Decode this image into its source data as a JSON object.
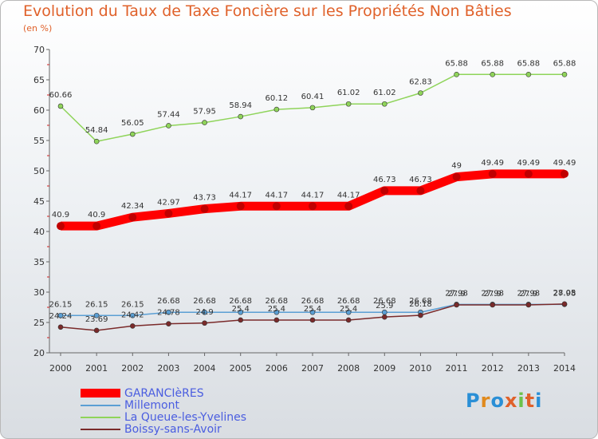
{
  "title": "Evolution du Taux de Taxe Foncière sur les Propriétés Non Bâties",
  "unit": "(en %)",
  "logo": {
    "text": "Proxiti",
    "colors": [
      "#2a8fd6",
      "#e08a1e",
      "#2a8fd6",
      "#e0612a",
      "#6cc24a",
      "#e0612a",
      "#2a8fd6"
    ]
  },
  "chart_data": {
    "type": "line",
    "x": [
      "2000",
      "2001",
      "2002",
      "2003",
      "2004",
      "2005",
      "2006",
      "2007",
      "2008",
      "2009",
      "2010",
      "2011",
      "2012",
      "2013",
      "2014"
    ],
    "ylim": [
      20,
      70
    ],
    "yticks": [
      20,
      25,
      30,
      35,
      40,
      45,
      50,
      55,
      60,
      65,
      70
    ],
    "grid": false,
    "legend_position": "bottom-left",
    "series": [
      {
        "name": "GARANCIèRES",
        "color": "#ff0000",
        "width": "thick",
        "values": [
          40.9,
          40.9,
          42.34,
          42.97,
          43.73,
          44.17,
          44.17,
          44.17,
          44.17,
          46.73,
          46.73,
          49,
          49.49,
          49.49,
          49.49
        ],
        "labels": [
          "40.9",
          "40.9",
          "42.34",
          "42.97",
          "43.73",
          "44.17",
          "44.17",
          "44.17",
          "44.17",
          "46.73",
          "46.73",
          "49",
          "49.49",
          "49.49",
          "49.49"
        ]
      },
      {
        "name": "Millemont",
        "color": "#5b9fd4",
        "width": "thin",
        "values": [
          26.15,
          26.15,
          26.15,
          26.68,
          26.68,
          26.68,
          26.68,
          26.68,
          26.68,
          26.68,
          26.68,
          27.98,
          27.98,
          27.98,
          27.98
        ],
        "labels": [
          "26.15",
          "26.15",
          "26.15",
          "26.68",
          "26.68",
          "26.68",
          "26.68",
          "26.68",
          "26.68",
          "26.68",
          "26.68",
          "27.98",
          "27.98",
          "27.98",
          "27.98"
        ]
      },
      {
        "name": "La Queue-les-Yvelines",
        "color": "#8fd45a",
        "width": "thin",
        "values": [
          60.66,
          54.84,
          56.05,
          57.44,
          57.95,
          58.94,
          60.12,
          60.41,
          61.02,
          61.02,
          62.83,
          65.88,
          65.88,
          65.88,
          65.88
        ],
        "labels": [
          "60.66",
          "54.84",
          "56.05",
          "57.44",
          "57.95",
          "58.94",
          "60.12",
          "60.41",
          "61.02",
          "61.02",
          "62.83",
          "65.88",
          "65.88",
          "65.88",
          "65.88"
        ]
      },
      {
        "name": "Boissy-sans-Avoir",
        "color": "#7a2a2a",
        "width": "thin",
        "values": [
          24.24,
          23.69,
          24.42,
          24.78,
          24.9,
          25.4,
          25.4,
          25.4,
          25.4,
          25.9,
          26.18,
          27.9,
          27.9,
          27.9,
          28.05
        ],
        "labels": [
          "24.24",
          "23.69",
          "24.42",
          "24.78",
          "24.9",
          "25.4",
          "25.4",
          "25.4",
          "25.4",
          "25.9",
          "26.18",
          "27.9",
          "27.9",
          "27.9",
          "28.05"
        ]
      }
    ]
  }
}
